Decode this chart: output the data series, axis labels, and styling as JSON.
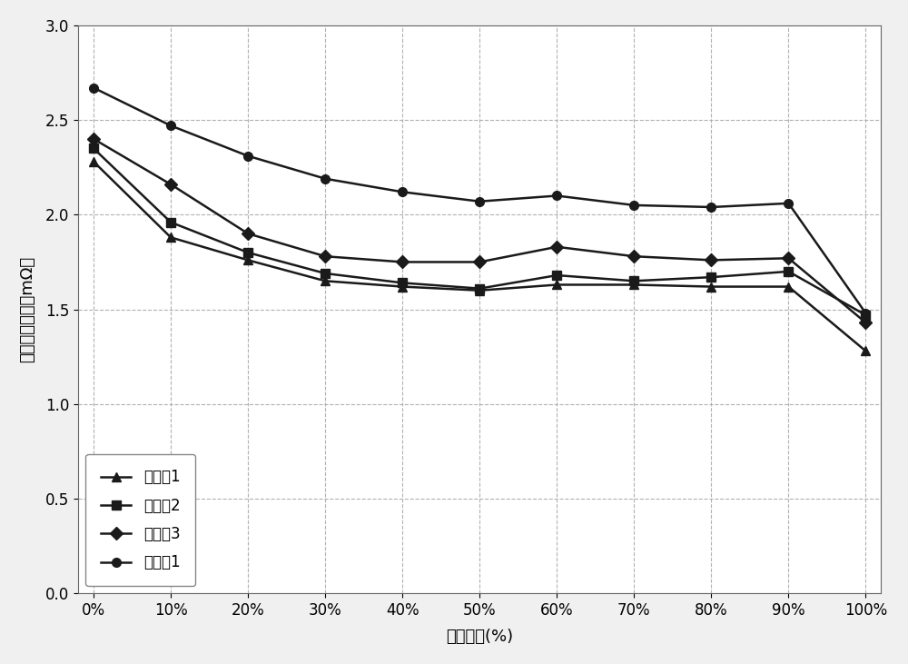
{
  "x_labels": [
    "0%",
    "10%",
    "20%",
    "30%",
    "40%",
    "50%",
    "60%",
    "70%",
    "80%",
    "90%",
    "100%"
  ],
  "x_values": [
    0,
    10,
    20,
    30,
    40,
    50,
    60,
    70,
    80,
    90,
    100
  ],
  "series": [
    {
      "name": "实施例1",
      "marker": "^",
      "values": [
        2.28,
        1.88,
        1.76,
        1.65,
        1.62,
        1.6,
        1.63,
        1.63,
        1.62,
        1.62,
        1.28
      ]
    },
    {
      "name": "实施例2",
      "marker": "s",
      "values": [
        2.35,
        1.96,
        1.8,
        1.69,
        1.64,
        1.61,
        1.68,
        1.65,
        1.67,
        1.7,
        1.47
      ]
    },
    {
      "name": "实施例3",
      "marker": "D",
      "values": [
        2.4,
        2.16,
        1.9,
        1.78,
        1.75,
        1.75,
        1.83,
        1.78,
        1.76,
        1.77,
        1.43
      ]
    },
    {
      "name": "对比例1",
      "marker": "o",
      "values": [
        2.67,
        2.47,
        2.31,
        2.19,
        2.12,
        2.07,
        2.1,
        2.05,
        2.04,
        2.06,
        1.48
      ]
    }
  ],
  "ylabel": "放电直流电阵（mΩ）",
  "xlabel": "荷电状态(%)",
  "ylim": [
    0.0,
    3.0
  ],
  "yticks": [
    0.0,
    0.5,
    1.0,
    1.5,
    2.0,
    2.5,
    3.0
  ],
  "line_color": "#1a1a1a",
  "background_color": "#f0f0f0",
  "plot_bg_color": "#ffffff",
  "grid_color": "#aaaaaa",
  "legend_loc": "lower left",
  "markersize": 7,
  "linewidth": 1.8,
  "title_fontsize": 13,
  "tick_fontsize": 12,
  "label_fontsize": 13,
  "legend_fontsize": 12
}
